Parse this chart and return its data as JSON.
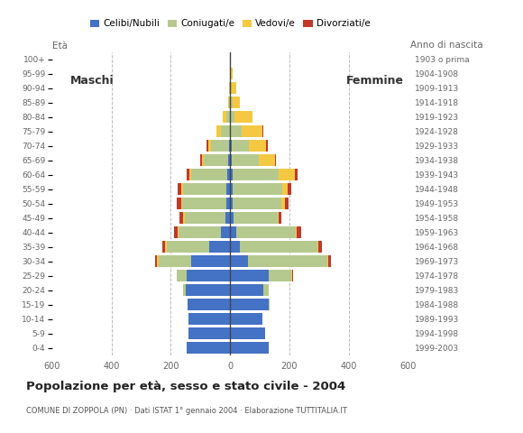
{
  "age_groups": [
    "0-4",
    "5-9",
    "10-14",
    "15-19",
    "20-24",
    "25-29",
    "30-34",
    "35-39",
    "40-44",
    "45-49",
    "50-54",
    "55-59",
    "60-64",
    "65-69",
    "70-74",
    "75-79",
    "80-84",
    "85-89",
    "90-94",
    "95-99",
    "100+"
  ],
  "birth_years": [
    "1999-2003",
    "1994-1998",
    "1989-1993",
    "1984-1988",
    "1979-1983",
    "1974-1978",
    "1969-1973",
    "1964-1968",
    "1959-1963",
    "1954-1958",
    "1949-1953",
    "1944-1948",
    "1939-1943",
    "1934-1938",
    "1929-1933",
    "1924-1928",
    "1919-1923",
    "1914-1918",
    "1909-1913",
    "1904-1908",
    "1903 o prima"
  ],
  "males_celibi": [
    148,
    142,
    142,
    145,
    150,
    148,
    130,
    70,
    32,
    16,
    14,
    12,
    10,
    8,
    5,
    2,
    0,
    0,
    0,
    0,
    0
  ],
  "males_coniugati": [
    0,
    0,
    0,
    0,
    8,
    32,
    112,
    145,
    142,
    138,
    148,
    148,
    122,
    82,
    58,
    28,
    12,
    4,
    2,
    0,
    0
  ],
  "males_vedovi": [
    0,
    0,
    0,
    0,
    0,
    0,
    4,
    4,
    4,
    4,
    4,
    4,
    5,
    6,
    12,
    16,
    12,
    4,
    2,
    0,
    0
  ],
  "males_divorziati": [
    0,
    0,
    0,
    0,
    0,
    0,
    8,
    10,
    10,
    12,
    15,
    14,
    10,
    6,
    4,
    0,
    0,
    0,
    0,
    0,
    0
  ],
  "females_nubili": [
    130,
    118,
    108,
    130,
    112,
    130,
    60,
    32,
    22,
    12,
    10,
    10,
    8,
    6,
    4,
    2,
    2,
    0,
    0,
    0,
    0
  ],
  "females_coniugate": [
    0,
    0,
    0,
    4,
    18,
    75,
    268,
    262,
    200,
    148,
    162,
    165,
    155,
    90,
    60,
    36,
    14,
    8,
    4,
    2,
    0
  ],
  "females_vedove": [
    0,
    0,
    0,
    0,
    0,
    4,
    4,
    4,
    4,
    4,
    14,
    20,
    56,
    56,
    58,
    70,
    58,
    25,
    16,
    5,
    0
  ],
  "females_divorziate": [
    0,
    0,
    0,
    0,
    0,
    4,
    8,
    12,
    15,
    8,
    12,
    12,
    10,
    4,
    4,
    4,
    0,
    0,
    0,
    0,
    0
  ],
  "colors_celibi": "#4472c4",
  "colors_coniugati": "#b5c98e",
  "colors_vedovi": "#f5c842",
  "colors_divorziati": "#c0392b",
  "xlim": 600,
  "title": "Popolazione per età, sesso e stato civile - 2004",
  "subtitle": "COMUNE DI ZOPPOLA (PN) · Dati ISTAT 1° gennaio 2004 · Elaborazione TUTTITALIA.IT",
  "label_eta": "Età",
  "label_anno": "Anno di nascita",
  "label_maschi": "Maschi",
  "label_femmine": "Femmine",
  "legend_labels": [
    "Celibi/Nubili",
    "Coniugati/e",
    "Vedovi/e",
    "Divorziati/e"
  ],
  "bg_color": "#ffffff",
  "grid_color": "#bbbbbb"
}
